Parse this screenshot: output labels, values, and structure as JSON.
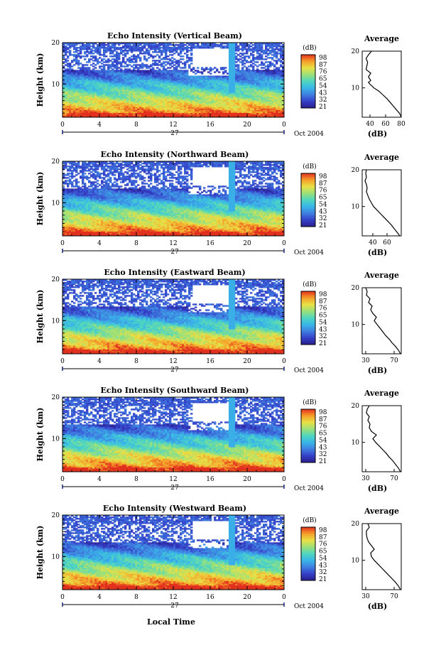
{
  "figure": {
    "common_xlabel": "Local Time",
    "date_label": "Oct 2004",
    "day_label": "27",
    "x_ticks": [
      "0",
      "4",
      "8",
      "12",
      "16",
      "20",
      "0"
    ],
    "avg_title": "Average",
    "avg_xlabel": "(dB)",
    "cbar_unit": "(dB)"
  },
  "chart_data": [
    {
      "type": "heatmap",
      "title": "Echo Intensity (Vertical Beam)",
      "ylabel": "Height (km)",
      "y_ticks": [
        "20",
        "10"
      ],
      "ylim": [
        2,
        20
      ],
      "xlim": [
        0,
        24
      ],
      "colorbar": {
        "label": "(dB)",
        "ticks": [
          "98",
          "87",
          "76",
          "65",
          "54",
          "43",
          "32",
          "21"
        ]
      },
      "average_profile": {
        "title": "Average",
        "xlabel": "(dB)",
        "x_ticks": [
          "40",
          "60",
          "80"
        ],
        "y_ticks": [
          "20",
          "10"
        ],
        "xlim": [
          30,
          80
        ],
        "ylim": [
          2,
          20
        ],
        "height": [
          2,
          3,
          4,
          5,
          6,
          7,
          8,
          9,
          10,
          11,
          11.5,
          12,
          13,
          14,
          15,
          16,
          17,
          18,
          19,
          20
        ],
        "value": [
          80,
          78,
          74,
          70,
          66,
          62,
          57,
          52,
          45,
          40,
          38,
          41,
          38,
          41,
          35,
          36,
          37,
          35,
          38,
          42
        ]
      }
    },
    {
      "type": "heatmap",
      "title": "Echo Intensity (Northward Beam)",
      "ylabel": "Height (km)",
      "y_ticks": [
        "20",
        "10"
      ],
      "ylim": [
        2,
        20
      ],
      "xlim": [
        0,
        24
      ],
      "colorbar": {
        "label": "(dB)",
        "ticks": [
          "98",
          "87",
          "76",
          "65",
          "54",
          "43",
          "32",
          "21"
        ]
      },
      "average_profile": {
        "title": "Average",
        "xlabel": "(dB)",
        "x_ticks": [
          "40",
          "60"
        ],
        "y_ticks": [
          "20",
          "10"
        ],
        "xlim": [
          25,
          80
        ],
        "ylim": [
          2,
          20
        ],
        "height": [
          2,
          3,
          4,
          5,
          6,
          7,
          8,
          9,
          10,
          11,
          12,
          13,
          14,
          15,
          16,
          17,
          18,
          19,
          20
        ],
        "value": [
          78,
          74,
          70,
          66,
          61,
          56,
          51,
          46,
          41,
          38,
          35,
          33,
          31,
          32,
          31,
          29,
          31,
          30,
          31
        ]
      }
    },
    {
      "type": "heatmap",
      "title": "Echo Intensity (Eastward Beam)",
      "ylabel": "Height (km)",
      "y_ticks": [
        "20",
        "10"
      ],
      "ylim": [
        2,
        20
      ],
      "xlim": [
        0,
        24
      ],
      "colorbar": {
        "label": "(dB)",
        "ticks": [
          "98",
          "87",
          "76",
          "65",
          "54",
          "43",
          "32",
          "21"
        ]
      },
      "average_profile": {
        "title": "Average",
        "xlabel": "(dB)",
        "x_ticks": [
          "30",
          "70"
        ],
        "y_ticks": [
          "20",
          "10"
        ],
        "xlim": [
          25,
          80
        ],
        "ylim": [
          2,
          20
        ],
        "height": [
          2,
          3,
          4,
          5,
          6,
          7,
          8,
          9,
          10,
          11,
          12,
          13,
          14,
          15,
          16,
          17,
          18,
          19,
          20
        ],
        "value": [
          79,
          76,
          72,
          67,
          63,
          58,
          54,
          50,
          46,
          42,
          45,
          40,
          37,
          39,
          34,
          36,
          31,
          32,
          30
        ]
      }
    },
    {
      "type": "heatmap",
      "title": "Echo Intensity (Southward Beam)",
      "ylabel": "Height (km)",
      "y_ticks": [
        "20",
        "10"
      ],
      "ylim": [
        2,
        20
      ],
      "xlim": [
        0,
        24
      ],
      "colorbar": {
        "label": "(dB)",
        "ticks": [
          "98",
          "87",
          "76",
          "65",
          "54",
          "43",
          "32",
          "21"
        ]
      },
      "average_profile": {
        "title": "Average",
        "xlabel": "(dB)",
        "x_ticks": [
          "30",
          "70"
        ],
        "y_ticks": [
          "20",
          "10"
        ],
        "xlim": [
          25,
          80
        ],
        "ylim": [
          2,
          20
        ],
        "height": [
          2,
          3,
          4,
          5,
          6,
          7,
          8,
          9,
          10,
          11,
          12,
          13,
          14,
          15,
          16,
          17,
          18,
          19,
          20
        ],
        "value": [
          79,
          76,
          72,
          68,
          63,
          59,
          54,
          49,
          44,
          40,
          45,
          38,
          35,
          36,
          33,
          35,
          31,
          32,
          35
        ]
      }
    },
    {
      "type": "heatmap",
      "title": "Echo Intensity (Westward Beam)",
      "ylabel": "Height (km)",
      "y_ticks": [
        "20",
        "10"
      ],
      "ylim": [
        2,
        20
      ],
      "xlim": [
        0,
        24
      ],
      "colorbar": {
        "label": "(dB)",
        "ticks": [
          "98",
          "87",
          "76",
          "65",
          "54",
          "43",
          "32",
          "21"
        ]
      },
      "average_profile": {
        "title": "Average",
        "xlabel": "(dB)",
        "x_ticks": [
          "30",
          "70"
        ],
        "y_ticks": [
          "20",
          "10"
        ],
        "xlim": [
          25,
          80
        ],
        "ylim": [
          2,
          20
        ],
        "height": [
          2,
          3,
          4,
          5,
          6,
          7,
          8,
          9,
          10,
          11,
          12,
          13,
          14,
          15,
          16,
          17,
          18,
          19,
          20
        ],
        "value": [
          79,
          76,
          72,
          67,
          62,
          57,
          52,
          47,
          42,
          38,
          37,
          42,
          38,
          34,
          32,
          31,
          31,
          35,
          33
        ]
      }
    }
  ],
  "colors": {
    "colormap": [
      "#2a1e8c",
      "#3540c8",
      "#3f7fe0",
      "#39b6e8",
      "#4fd6c0",
      "#9be07a",
      "#e8e046",
      "#f5a02a",
      "#e2301e"
    ]
  }
}
